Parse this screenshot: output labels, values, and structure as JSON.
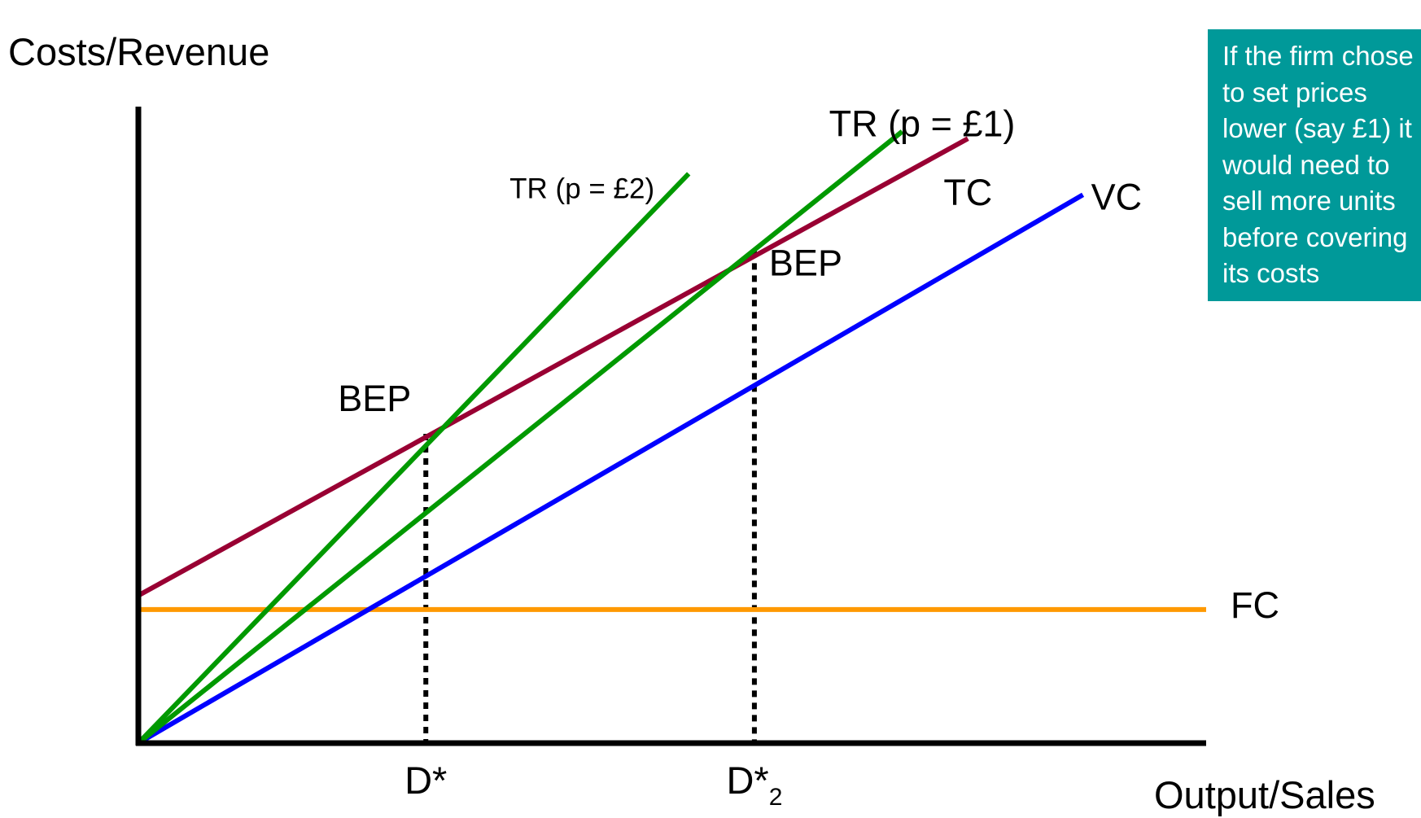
{
  "chart_data": {
    "type": "line",
    "title": "",
    "ylabel": "Costs/Revenue",
    "xlabel": "Output/Sales",
    "xlim": [
      0,
      13
    ],
    "ylim": [
      0,
      8
    ],
    "grid": false,
    "x_ticks": [
      {
        "x": 3.5,
        "label": "D*",
        "sub": ""
      },
      {
        "x": 7.5,
        "label": "D*",
        "sub": "2"
      }
    ],
    "series": [
      {
        "name": "FC",
        "color": "#ff9900",
        "points": [
          [
            0,
            1.9
          ],
          [
            13,
            1.9
          ]
        ]
      },
      {
        "name": "VC",
        "color": "#0000ff",
        "points": [
          [
            0,
            0
          ],
          [
            11.5,
            7.8
          ]
        ]
      },
      {
        "name": "TC",
        "color": "#990033",
        "points": [
          [
            0,
            2.1
          ],
          [
            10.1,
            8.6
          ]
        ]
      },
      {
        "name": "TR (p = £1)",
        "color": "#009900",
        "points": [
          [
            0,
            0
          ],
          [
            9.3,
            8.7
          ]
        ]
      },
      {
        "name": "TR (p = £2)",
        "color": "#009900",
        "points": [
          [
            0,
            0
          ],
          [
            6.7,
            8.1
          ]
        ]
      }
    ],
    "drop_lines": [
      {
        "x": 3.5,
        "y": 4.4
      },
      {
        "x": 7.5,
        "y": 7.0
      }
    ],
    "annotations": [
      {
        "text": "BEP",
        "x": 3.5,
        "y": 4.4
      },
      {
        "text": "BEP",
        "x": 7.5,
        "y": 7.0
      }
    ]
  },
  "callout": {
    "lines": [
      "If the firm chose",
      "to set prices",
      "lower (say £1) it",
      "would need to",
      "sell more units",
      "before covering",
      "its costs"
    ],
    "color": "#009999"
  }
}
